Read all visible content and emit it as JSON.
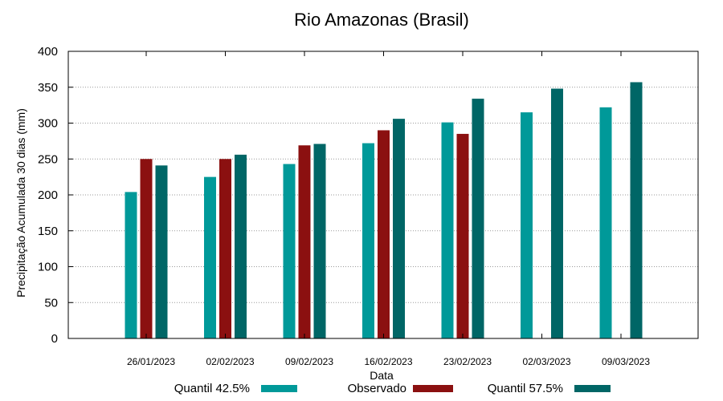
{
  "chart_data": {
    "type": "bar",
    "title": "Rio Amazonas (Brasil)",
    "xlabel": "Data",
    "ylabel": "Precipitação Acumulada 30 dias (mm)",
    "ylim": [
      0,
      400
    ],
    "yticks": [
      0,
      50,
      100,
      150,
      200,
      250,
      300,
      350,
      400
    ],
    "grid": true,
    "categories": [
      "26/01/2023",
      "02/02/2023",
      "09/02/2023",
      "16/02/2023",
      "23/02/2023",
      "02/03/2023",
      "09/03/2023"
    ],
    "series": [
      {
        "name": "Quantil 42.5%",
        "color": "#009999",
        "values": [
          204,
          225,
          243,
          272,
          301,
          315,
          322
        ]
      },
      {
        "name": "Observado",
        "color": "#8b1010",
        "values": [
          250,
          250,
          269,
          290,
          285,
          null,
          null
        ]
      },
      {
        "name": "Quantil 57.5%",
        "color": "#006666",
        "values": [
          241,
          256,
          271,
          306,
          334,
          348,
          357
        ]
      }
    ],
    "legend_position": "bottom"
  }
}
